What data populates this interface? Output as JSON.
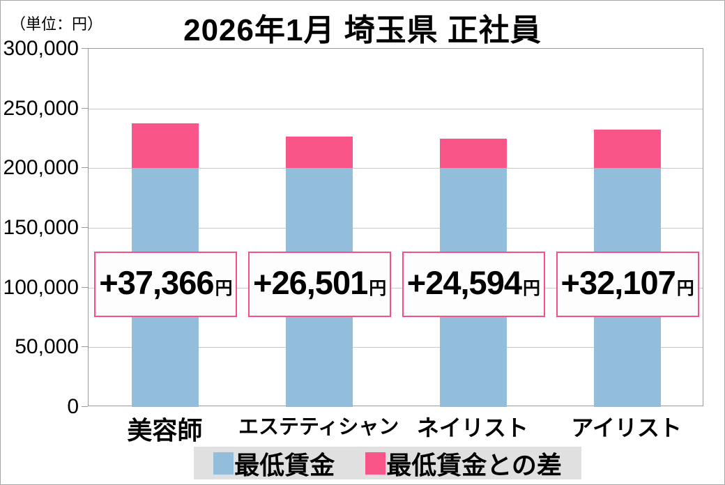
{
  "unit_label": "（単位：円）",
  "chart_data": {
    "type": "bar",
    "stacked": true,
    "title": "2026年1月 埼玉県 正社員",
    "unit": "円",
    "categories": [
      "美容師",
      "エステティシャン",
      "ネイリスト",
      "アイリスト"
    ],
    "series": [
      {
        "name": "最低賃金",
        "color": "#92BEDC",
        "values": [
          200000,
          200000,
          200000,
          200000
        ]
      },
      {
        "name": "最低賃金との差",
        "color": "#FA5588",
        "values": [
          37366,
          26501,
          24594,
          32107
        ]
      }
    ],
    "totals": [
      237366,
      226501,
      224594,
      232107
    ],
    "bar_labels": [
      {
        "value": "+37,366",
        "suffix": "円"
      },
      {
        "value": "+26,501",
        "suffix": "円"
      },
      {
        "value": "+24,594",
        "suffix": "円"
      },
      {
        "value": "+32,107",
        "suffix": "円"
      }
    ],
    "ylim": [
      0,
      300000
    ],
    "ytick_interval": 50000,
    "yticks": [
      {
        "value": 300000,
        "label": "300,000"
      },
      {
        "value": 250000,
        "label": "250,000"
      },
      {
        "value": 200000,
        "label": "200,000"
      },
      {
        "value": 150000,
        "label": "150,000"
      },
      {
        "value": 100000,
        "label": "100,000"
      },
      {
        "value": 50000,
        "label": "50,000"
      },
      {
        "value": 0,
        "label": "0"
      }
    ],
    "grid": true,
    "legend_position": "bottom"
  },
  "colors": {
    "min_wage": "#92BEDC",
    "diff": "#FA5588",
    "label_box_border": "#FA4E86",
    "grid_line": "#C9C9C9",
    "axis_border": "#999999",
    "legend_bg": "#E0E0E0",
    "text": "#000000"
  }
}
